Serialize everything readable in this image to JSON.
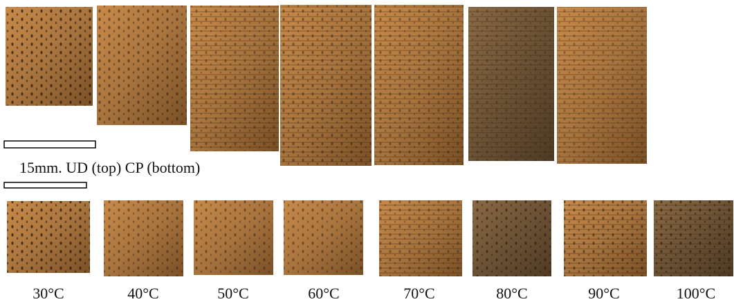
{
  "caption": "15mm. UD (top) CP (bottom)",
  "labels": [
    "30°C",
    "40°C",
    "50°C",
    "60°C",
    "70°C",
    "80°C",
    "90°C",
    "100°C"
  ]
}
